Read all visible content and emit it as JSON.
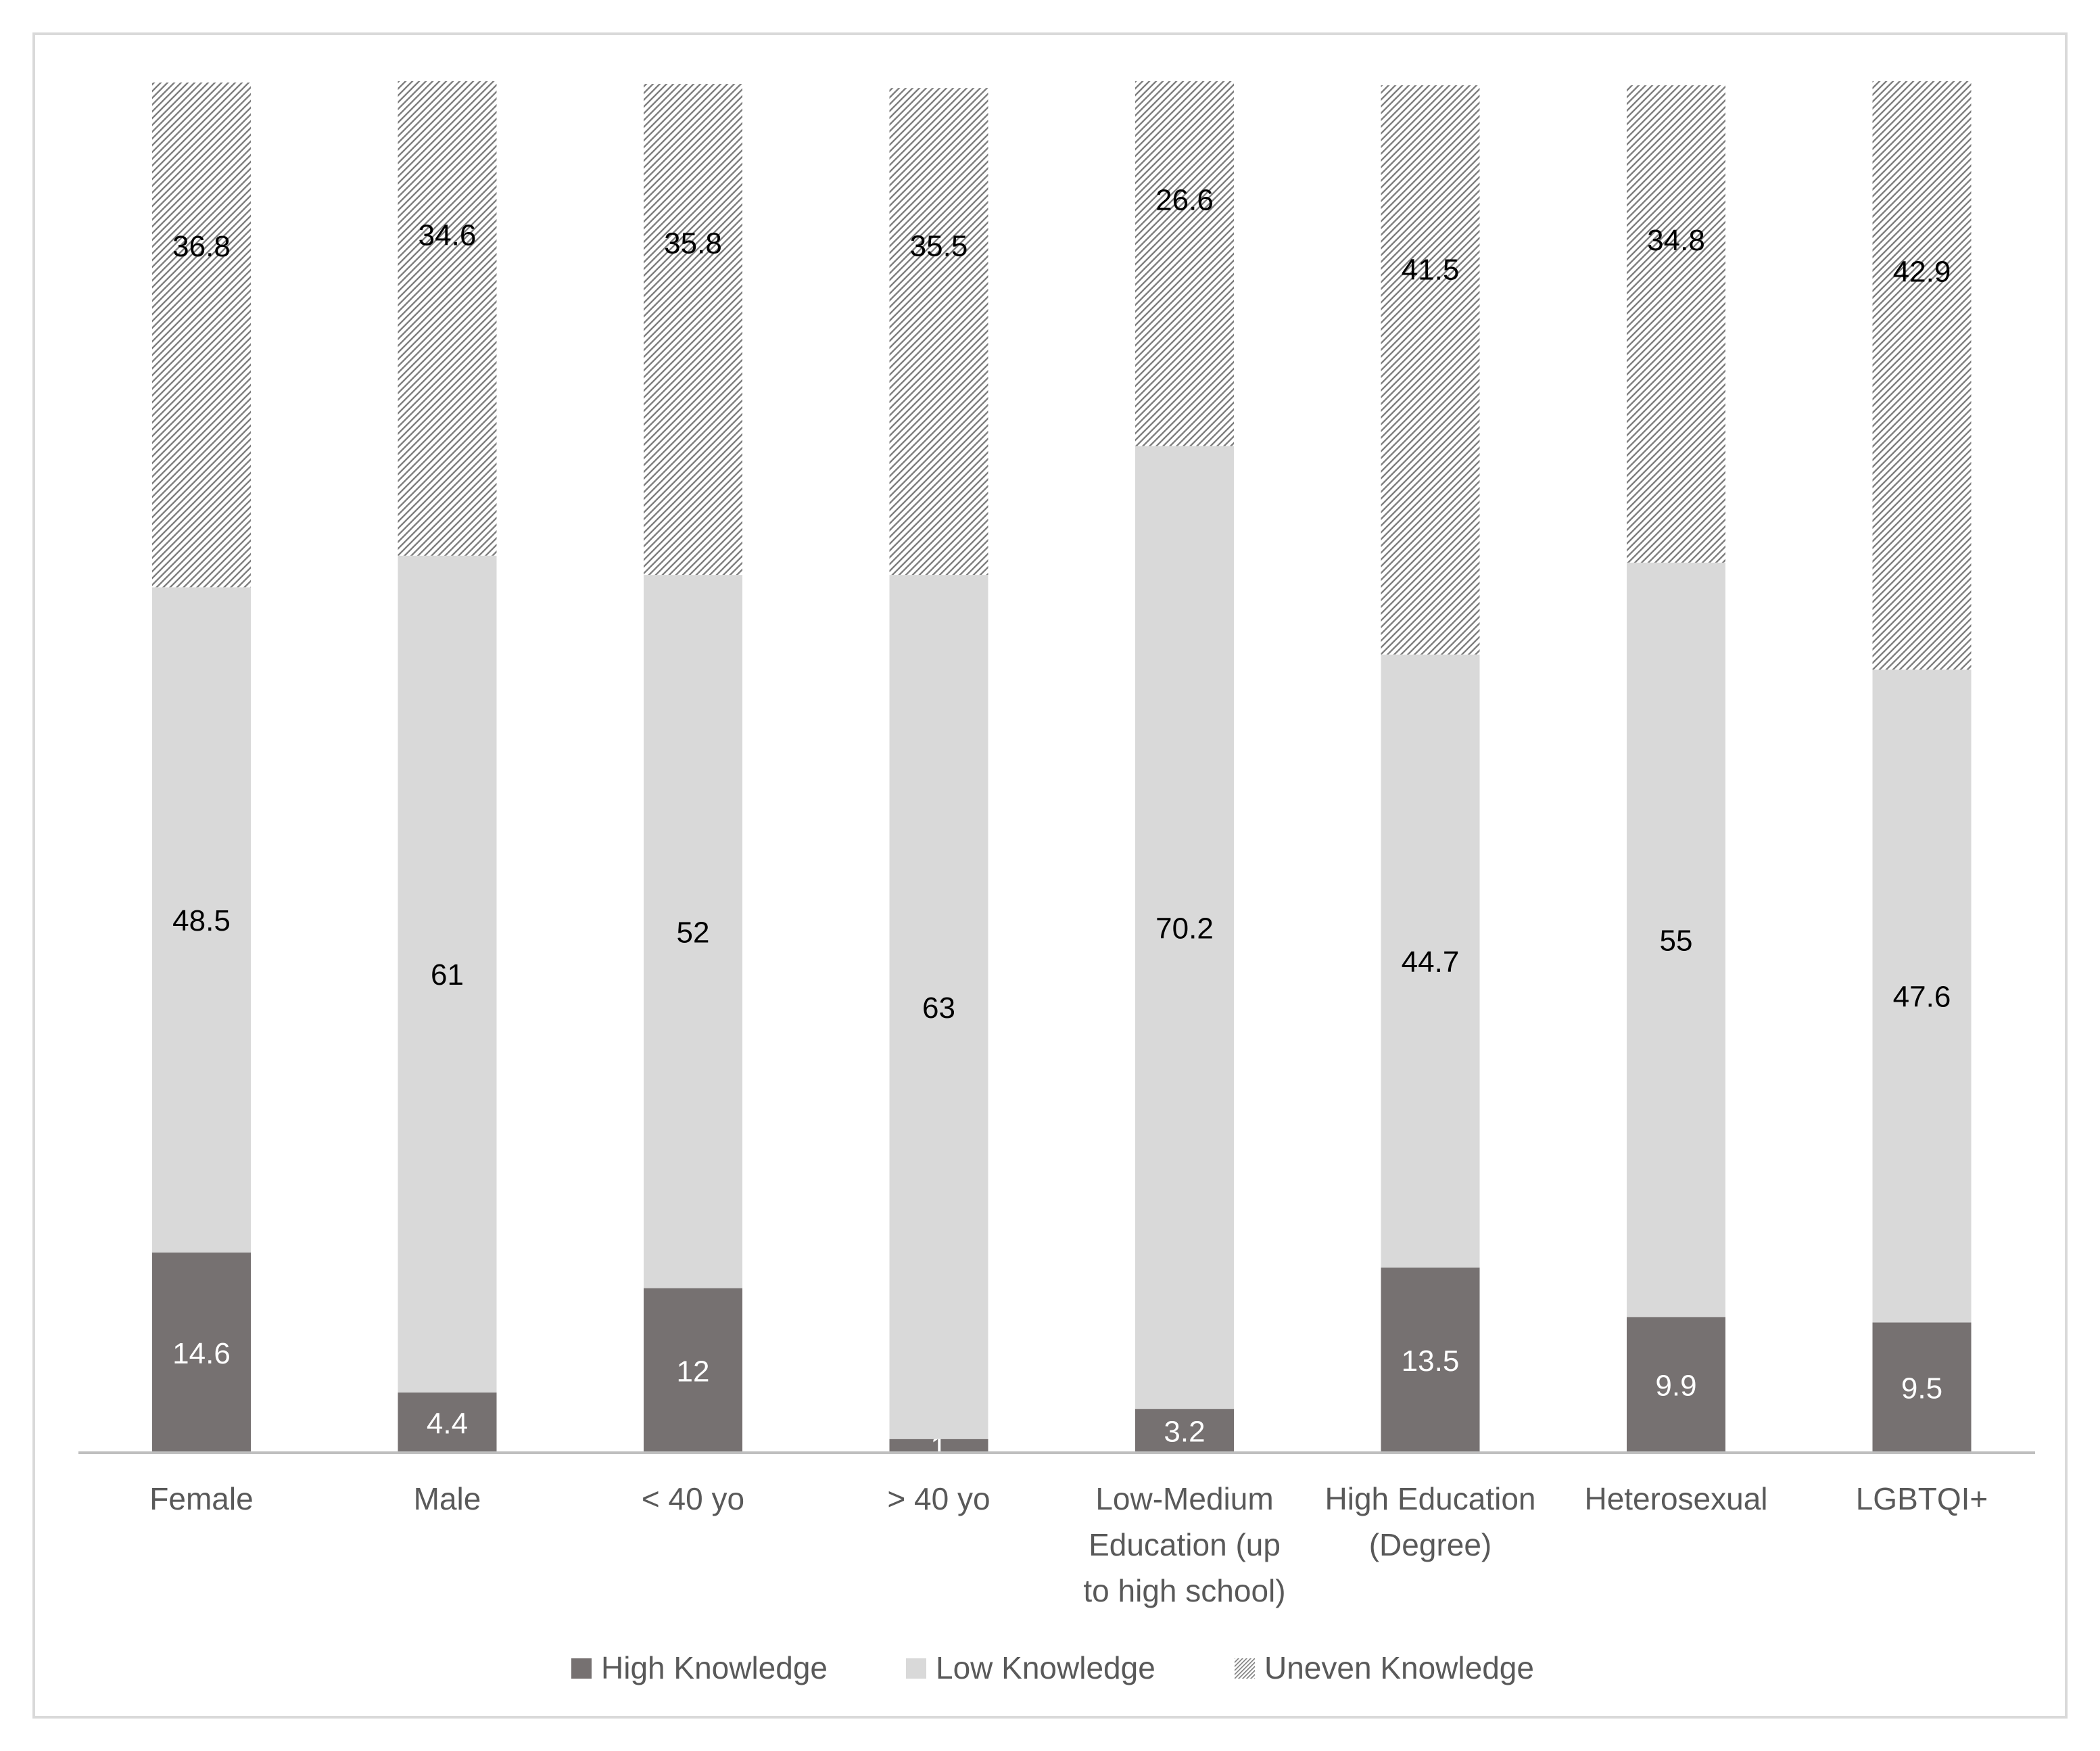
{
  "chart_data": {
    "type": "bar",
    "stacked": true,
    "title": "",
    "xlabel": "",
    "ylabel": "",
    "ylim": [
      0,
      100
    ],
    "grid": false,
    "legend_position": "bottom",
    "categories": [
      [
        "Female"
      ],
      [
        "Male"
      ],
      [
        "< 40 yo"
      ],
      [
        "> 40 yo"
      ],
      [
        "Low-Medium",
        "Education (up",
        "to high school)"
      ],
      [
        "High Education",
        "(Degree)"
      ],
      [
        "Heterosexual"
      ],
      [
        "LGBTQI+"
      ]
    ],
    "series": [
      {
        "name": "High Knowledge",
        "color": "#767171",
        "pattern": "solid",
        "label_color": "#ffffff",
        "values": [
          14.6,
          4.4,
          12,
          1,
          3.2,
          13.5,
          9.9,
          9.5
        ],
        "labels": [
          "14.6",
          "4.4",
          "12",
          "1",
          "3.2",
          "13.5",
          "9.9",
          "9.5"
        ]
      },
      {
        "name": "Low Knowledge",
        "color": "#d9d9d9",
        "pattern": "solid",
        "label_color": "#000000",
        "values": [
          48.5,
          61,
          52,
          63,
          70.2,
          44.7,
          55,
          47.6
        ],
        "labels": [
          "48.5",
          "61",
          "52",
          "63",
          "70.2",
          "44.7",
          "55",
          "47.6"
        ]
      },
      {
        "name": "Uneven Knowledge",
        "color": "#8c8c8c",
        "pattern": "hatched",
        "label_color": "#000000",
        "values": [
          36.8,
          34.6,
          35.8,
          35.5,
          26.6,
          41.5,
          34.8,
          42.9
        ],
        "labels": [
          "36.8",
          "34.6",
          "35.8",
          "35.5",
          "26.6",
          "41.5",
          "34.8",
          "42.9"
        ]
      }
    ]
  },
  "colors": {
    "frame": "#d9d9d9",
    "axis": "#bfbfbf",
    "text": "#595959"
  }
}
